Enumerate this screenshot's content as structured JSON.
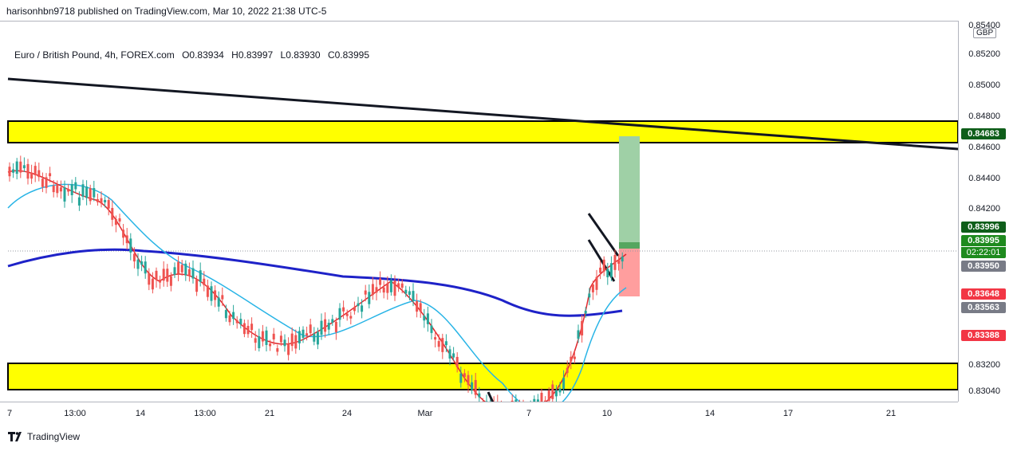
{
  "header": {
    "publisher_line": "harisonhbn9718 published on TradingView.com, Mar 10, 2022 21:38 UTC-5"
  },
  "legend": {
    "symbol": "Euro / British Pound, 4h, FOREX.com",
    "open": "O0.83934",
    "high": "H0.83997",
    "low": "L0.83930",
    "close": "C0.83995"
  },
  "currency": "GBP",
  "price_ticks": [
    "0.85400",
    "0.85200",
    "0.85000",
    "0.84800",
    "0.84600",
    "0.84400",
    "0.84200",
    "0.83200",
    "0.83040"
  ],
  "price_tags": {
    "target": "0.84683",
    "high_tag": "0.83996",
    "last": "0.83995",
    "countdown": "02:22:01",
    "ma_fast": "0.83950",
    "stop": "0.83648",
    "ma_slow": "0.83563",
    "low_tag": "0.83388"
  },
  "time_labels": [
    "7",
    "13:00",
    "14",
    "13:00",
    "21",
    "24",
    "Mar",
    "7",
    "10",
    "14",
    "17",
    "21"
  ],
  "colors": {
    "up": "#26a69a",
    "down": "#ef5350",
    "zone": "#ffff00",
    "ma_slow": "#1e22c8",
    "ma_fast": "#e0282e",
    "ma_mid": "#28b4e6",
    "profit": "#9fd0a6",
    "loss": "#ff9e9e",
    "tag_green": "#1e8a1e",
    "tag_dark_green": "#0f5e1a",
    "tag_red": "#f23645",
    "tag_gray": "#787b86"
  },
  "footer": {
    "brand": "TradingView",
    "logo_icon": "tradingview-logo-icon"
  }
}
